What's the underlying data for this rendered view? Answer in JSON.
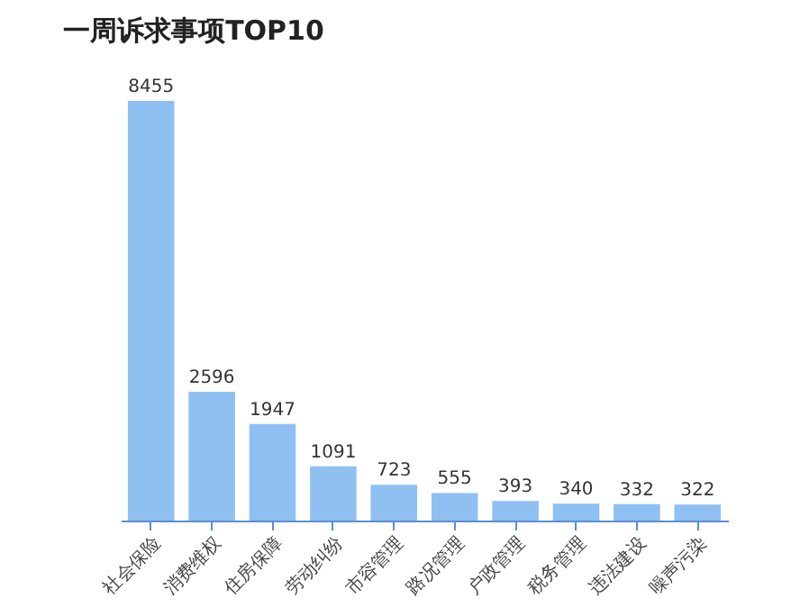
{
  "chart_data": {
    "type": "bar",
    "title": "一周诉求事项TOP10",
    "categories": [
      "社会保险",
      "消费维权",
      "住房保障",
      "劳动纠纷",
      "市容管理",
      "路况管理",
      "户政管理",
      "税务管理",
      "违法建设",
      "噪声污染"
    ],
    "values": [
      8455,
      2596,
      1947,
      1091,
      723,
      555,
      393,
      340,
      332,
      322
    ],
    "color": "#8fc0f2",
    "data_labels": true,
    "grid": false
  }
}
